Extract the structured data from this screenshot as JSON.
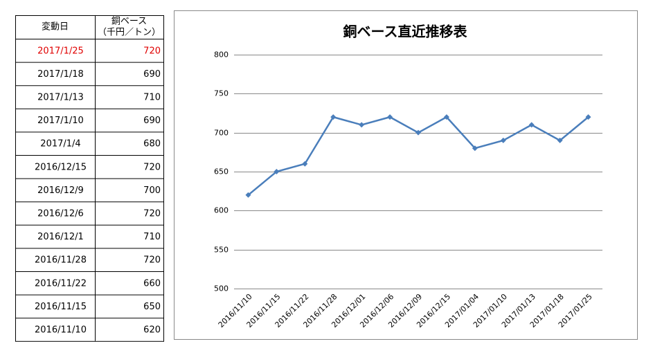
{
  "table": {
    "header": [
      "変動日",
      [
        "銅ベース",
        "（千円／トン）"
      ]
    ],
    "rows": [
      [
        "2017/1/25",
        720
      ],
      [
        "2017/1/18",
        690
      ],
      [
        "2017/1/13",
        710
      ],
      [
        "2017/1/10",
        690
      ],
      [
        "2017/1/4",
        680
      ],
      [
        "2016/12/15",
        720
      ],
      [
        "2016/12/9",
        700
      ],
      [
        "2016/12/6",
        720
      ],
      [
        "2016/12/1",
        710
      ],
      [
        "2016/11/28",
        720
      ],
      [
        "2016/11/22",
        660
      ],
      [
        "2016/11/15",
        650
      ],
      [
        "2016/11/10",
        620
      ]
    ]
  },
  "chart_data": {
    "type": "line",
    "title": "銅ベース直近推移表",
    "categories": [
      "2016/11/10",
      "2016/11/15",
      "2016/11/22",
      "2016/11/28",
      "2016/12/01",
      "2016/12/06",
      "2016/12/09",
      "2016/12/15",
      "2017/01/04",
      "2017/01/10",
      "2017/01/13",
      "2017/01/18",
      "2017/01/25"
    ],
    "values": [
      620,
      650,
      660,
      720,
      710,
      720,
      700,
      720,
      680,
      690,
      710,
      690,
      720
    ],
    "color": "#4a7ebb",
    "ylim": [
      500,
      800
    ],
    "yticks": [
      500,
      550,
      600,
      650,
      700,
      750,
      800
    ],
    "grid": true
  }
}
